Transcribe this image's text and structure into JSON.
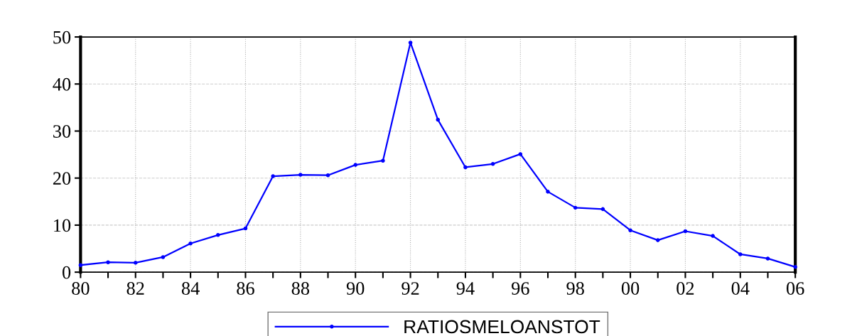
{
  "chart_data": {
    "type": "line",
    "x": [
      1980,
      1981,
      1982,
      1983,
      1984,
      1985,
      1986,
      1987,
      1988,
      1989,
      1990,
      1991,
      1992,
      1993,
      1994,
      1995,
      1996,
      1997,
      1998,
      1999,
      2000,
      2001,
      2002,
      2003,
      2004,
      2005,
      2006
    ],
    "series": [
      {
        "name": "RATIOSMELOANSTOT",
        "color": "#0000ff",
        "values": [
          1.5,
          2.1,
          2.0,
          3.2,
          6.1,
          7.9,
          9.3,
          20.4,
          20.7,
          20.6,
          22.8,
          23.7,
          48.8,
          32.4,
          22.3,
          23.0,
          25.1,
          17.1,
          13.7,
          13.4,
          8.9,
          6.8,
          8.7,
          7.7,
          3.8,
          2.9,
          1.1
        ]
      }
    ],
    "xlim": [
      1980,
      2006
    ],
    "xticks": [
      {
        "value": 1980,
        "label": "80"
      },
      {
        "value": 1981,
        "label": null
      },
      {
        "value": 1982,
        "label": "82"
      },
      {
        "value": 1983,
        "label": null
      },
      {
        "value": 1984,
        "label": "84"
      },
      {
        "value": 1985,
        "label": null
      },
      {
        "value": 1986,
        "label": "86"
      },
      {
        "value": 1987,
        "label": null
      },
      {
        "value": 1988,
        "label": "88"
      },
      {
        "value": 1989,
        "label": null
      },
      {
        "value": 1990,
        "label": "90"
      },
      {
        "value": 1991,
        "label": null
      },
      {
        "value": 1992,
        "label": "92"
      },
      {
        "value": 1993,
        "label": null
      },
      {
        "value": 1994,
        "label": "94"
      },
      {
        "value": 1995,
        "label": null
      },
      {
        "value": 1996,
        "label": "96"
      },
      {
        "value": 1997,
        "label": null
      },
      {
        "value": 1998,
        "label": "98"
      },
      {
        "value": 1999,
        "label": null
      },
      {
        "value": 2000,
        "label": "00"
      },
      {
        "value": 2001,
        "label": null
      },
      {
        "value": 2002,
        "label": "02"
      },
      {
        "value": 2003,
        "label": null
      },
      {
        "value": 2004,
        "label": "04"
      },
      {
        "value": 2005,
        "label": null
      },
      {
        "value": 2006,
        "label": "06"
      }
    ],
    "ylim": [
      0,
      50
    ],
    "yticks": [
      0,
      10,
      20,
      30,
      40,
      50
    ],
    "grid": true,
    "legend": "bottom",
    "marker": "circle",
    "line_style": "solid"
  }
}
